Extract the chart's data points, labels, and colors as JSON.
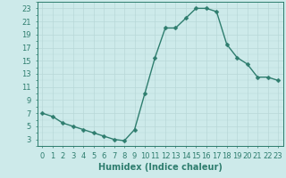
{
  "x": [
    0,
    1,
    2,
    3,
    4,
    5,
    6,
    7,
    8,
    9,
    10,
    11,
    12,
    13,
    14,
    15,
    16,
    17,
    18,
    19,
    20,
    21,
    22,
    23
  ],
  "y": [
    7,
    6.5,
    5.5,
    5,
    4.5,
    4,
    3.5,
    3,
    2.8,
    4.5,
    10,
    15.5,
    20,
    20,
    21.5,
    23,
    23,
    22.5,
    17.5,
    15.5,
    14.5,
    12.5,
    12.5,
    12
  ],
  "xlabel": "Humidex (Indice chaleur)",
  "xlim": [
    -0.5,
    23.5
  ],
  "ylim": [
    2,
    24
  ],
  "yticks": [
    3,
    5,
    7,
    9,
    11,
    13,
    15,
    17,
    19,
    21,
    23
  ],
  "xticks": [
    0,
    1,
    2,
    3,
    4,
    5,
    6,
    7,
    8,
    9,
    10,
    11,
    12,
    13,
    14,
    15,
    16,
    17,
    18,
    19,
    20,
    21,
    22,
    23
  ],
  "line_color": "#2e7d6e",
  "bg_color": "#cdeaea",
  "grid_color": "#b8d8d8",
  "tick_label_fontsize": 6,
  "xlabel_fontsize": 7,
  "line_width": 1.0,
  "marker_size": 2.5
}
